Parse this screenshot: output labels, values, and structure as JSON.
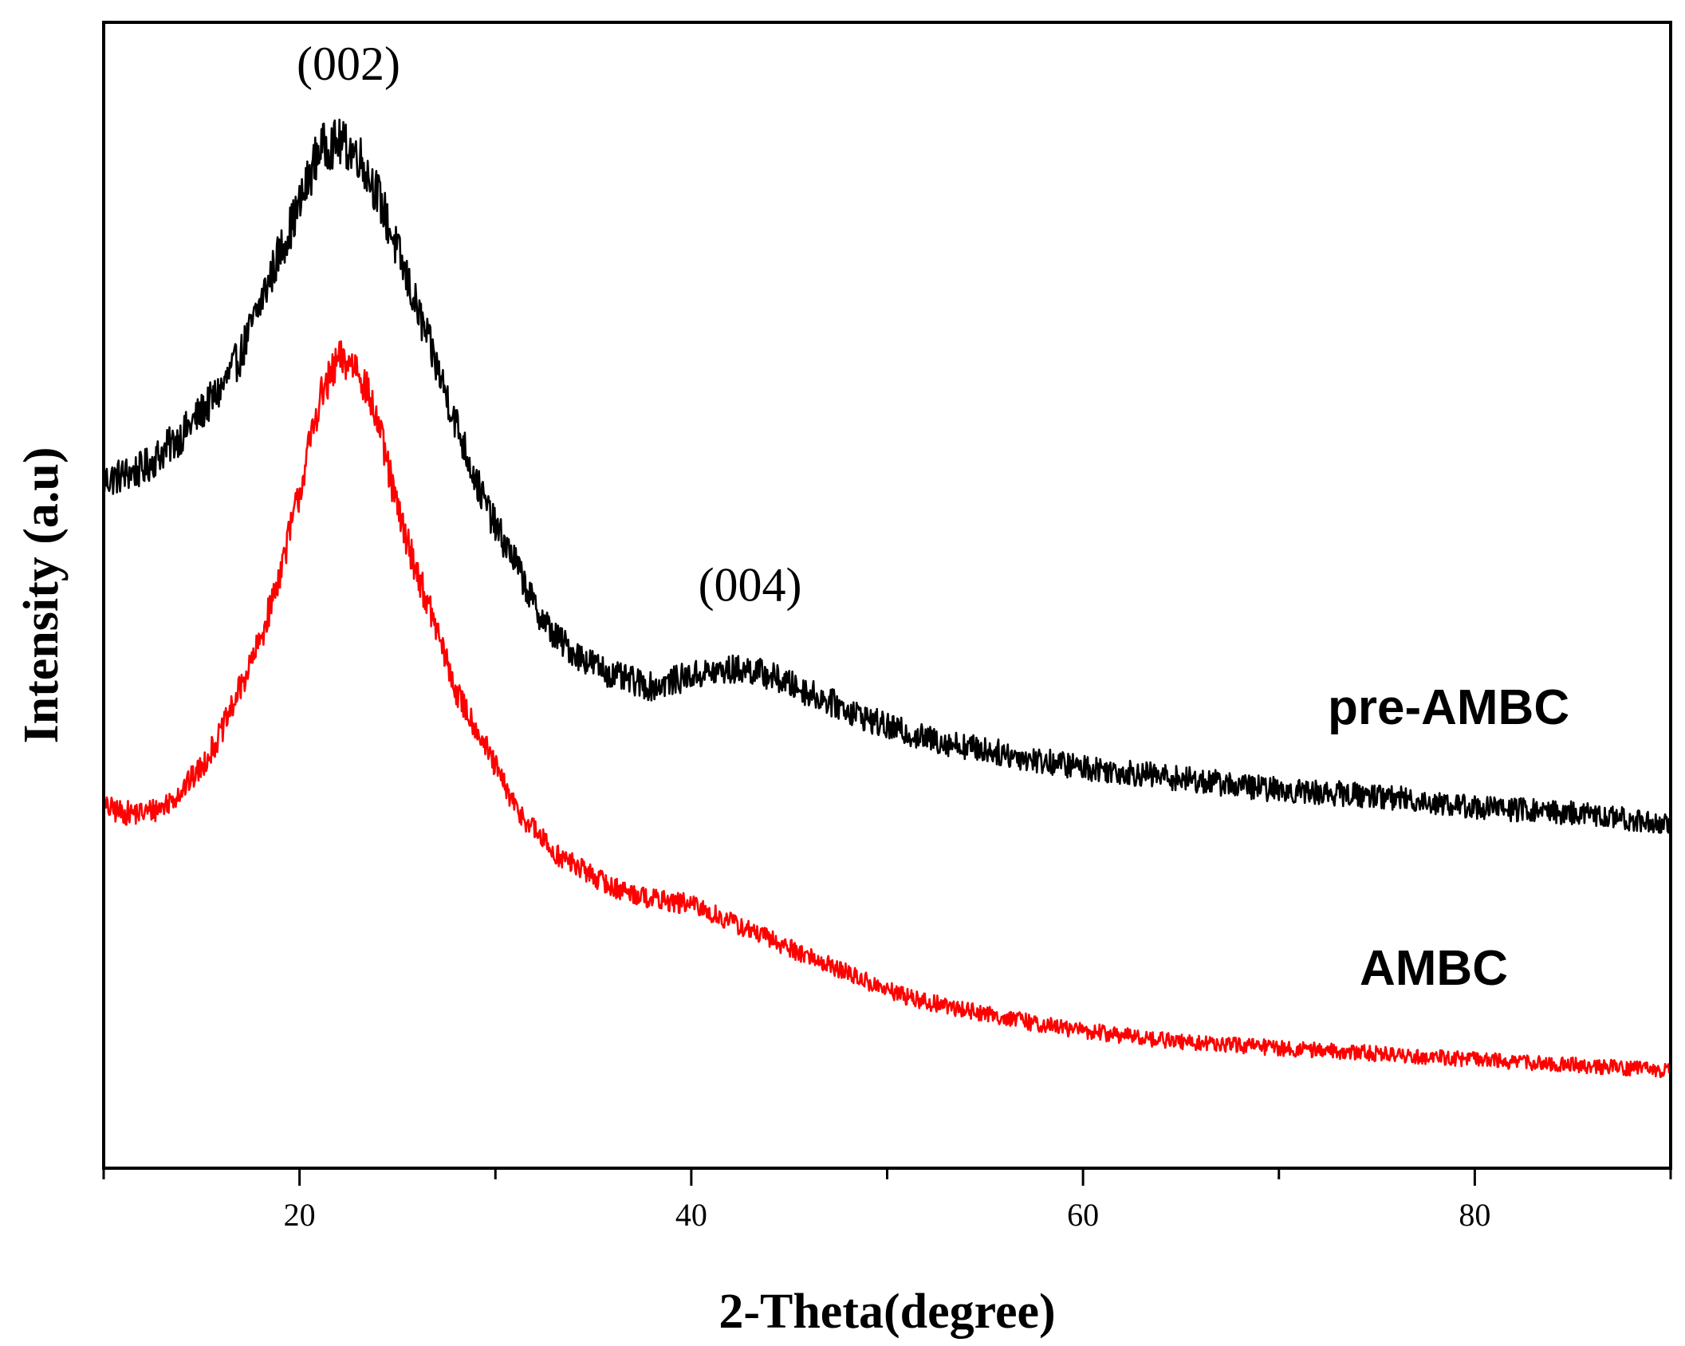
{
  "chart_data": {
    "type": "line",
    "title": "",
    "xlabel": "2-Theta(degree)",
    "ylabel": "Intensity  (a.u)",
    "xlim": [
      10,
      90
    ],
    "ylim": [
      0,
      100
    ],
    "x_ticks": [
      20,
      40,
      60,
      80
    ],
    "x_ticks_minor": [
      10,
      30,
      50,
      70,
      90
    ],
    "y_ticks_shown": false,
    "grid": false,
    "series": [
      {
        "name": "pre-AMBC",
        "color": "#000000",
        "points": [
          [
            10,
            60.0
          ],
          [
            12,
            61.0
          ],
          [
            14,
            64.0
          ],
          [
            16,
            68.0
          ],
          [
            17,
            71.0
          ],
          [
            18,
            75.5
          ],
          [
            19,
            80.0
          ],
          [
            20,
            84.0
          ],
          [
            21,
            89.0
          ],
          [
            22,
            89.5
          ],
          [
            23,
            88.5
          ],
          [
            24,
            85.0
          ],
          [
            25,
            80.0
          ],
          [
            26,
            75.0
          ],
          [
            27,
            70.0
          ],
          [
            28,
            65.0
          ],
          [
            29,
            60.0
          ],
          [
            30,
            56.0
          ],
          [
            31,
            53.0
          ],
          [
            32,
            49.0
          ],
          [
            33,
            46.5
          ],
          [
            34,
            45.0
          ],
          [
            35,
            44.0
          ],
          [
            36,
            43.0
          ],
          [
            38,
            42.0
          ],
          [
            40,
            43.0
          ],
          [
            42,
            43.5
          ],
          [
            43,
            43.5
          ],
          [
            44,
            43.0
          ],
          [
            46,
            41.5
          ],
          [
            48,
            40.0
          ],
          [
            50,
            38.5
          ],
          [
            52,
            37.5
          ],
          [
            55,
            36.5
          ],
          [
            58,
            35.5
          ],
          [
            60,
            35.0
          ],
          [
            65,
            34.0
          ],
          [
            70,
            33.0
          ],
          [
            75,
            32.5
          ],
          [
            80,
            31.5
          ],
          [
            85,
            31.0
          ],
          [
            90,
            30.0
          ]
        ]
      },
      {
        "name": "AMBC",
        "color": "#ff0000",
        "points": [
          [
            10,
            31.5
          ],
          [
            11,
            31.0
          ],
          [
            12,
            31.0
          ],
          [
            13,
            31.5
          ],
          [
            14,
            33.0
          ],
          [
            15,
            35.0
          ],
          [
            16,
            38.0
          ],
          [
            17,
            42.0
          ],
          [
            18,
            46.0
          ],
          [
            19,
            52.0
          ],
          [
            20,
            59.0
          ],
          [
            21,
            67.0
          ],
          [
            22,
            70.5
          ],
          [
            23,
            70.0
          ],
          [
            24,
            65.0
          ],
          [
            25,
            57.5
          ],
          [
            26,
            52.0
          ],
          [
            27,
            47.0
          ],
          [
            28,
            41.5
          ],
          [
            29,
            38.5
          ],
          [
            30,
            35.0
          ],
          [
            31,
            31.5
          ],
          [
            32,
            29.5
          ],
          [
            33,
            27.5
          ],
          [
            34,
            26.5
          ],
          [
            35,
            25.5
          ],
          [
            36,
            24.5
          ],
          [
            38,
            23.5
          ],
          [
            40,
            23.0
          ],
          [
            42,
            21.5
          ],
          [
            44,
            20.0
          ],
          [
            46,
            18.5
          ],
          [
            48,
            17.0
          ],
          [
            50,
            15.5
          ],
          [
            52,
            14.5
          ],
          [
            55,
            13.5
          ],
          [
            58,
            12.5
          ],
          [
            60,
            12.0
          ],
          [
            65,
            11.0
          ],
          [
            70,
            10.5
          ],
          [
            75,
            10.0
          ],
          [
            80,
            9.5
          ],
          [
            85,
            9.0
          ],
          [
            90,
            8.5
          ]
        ]
      }
    ],
    "series_labels": [
      "pre-AMBC",
      "AMBC"
    ],
    "annotations": [
      {
        "text": "(002)",
        "x": 22.5,
        "y": 95
      },
      {
        "text": "(004)",
        "x": 43,
        "y": 49.5
      }
    ]
  }
}
